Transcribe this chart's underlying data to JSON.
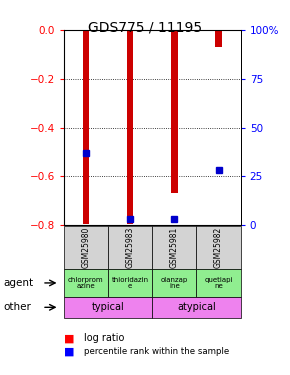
{
  "title": "GDS775 / 11195",
  "samples": [
    "GSM25980",
    "GSM25983",
    "GSM25981",
    "GSM25982"
  ],
  "log_ratios": [
    -0.795,
    -0.795,
    -0.67,
    -0.07
  ],
  "percentile_ranks": [
    0.37,
    0.03,
    0.03,
    0.28
  ],
  "ylim_left": [
    -0.8,
    0.0
  ],
  "ylim_right": [
    0,
    100
  ],
  "yticks_left": [
    0.0,
    -0.2,
    -0.4,
    -0.6,
    -0.8
  ],
  "yticks_right": [
    0,
    25,
    50,
    75,
    100
  ],
  "bar_color": "#cc0000",
  "percentile_color": "#0000cc",
  "agent_labels": [
    "chlorprom\nazine",
    "thioridazin\ne",
    "olanzap\nine",
    "quetiapi\nne"
  ],
  "sample_bg": "#d3d3d3",
  "legend_red": "log ratio",
  "legend_blue": "percentile rank within the sample",
  "bar_width": 0.15,
  "title_fontsize": 10,
  "tick_fontsize": 7.5
}
